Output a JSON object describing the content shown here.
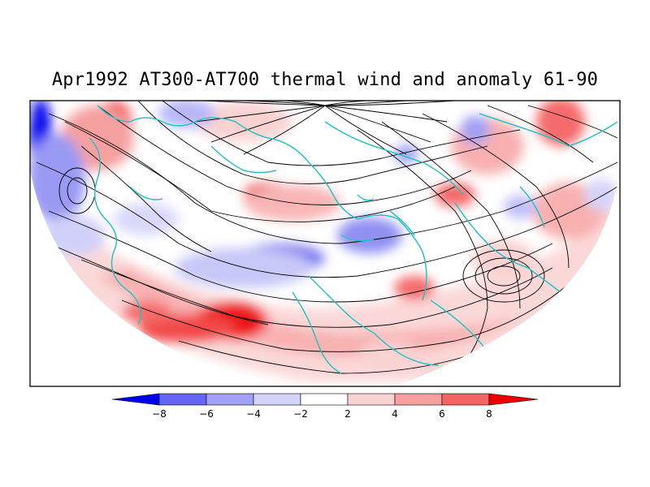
{
  "title": "Apr1992 AT300-AT700 thermal wind and anomaly 61-90",
  "colorbar": {
    "labels": [
      "−8",
      "−6",
      "−4",
      "−2",
      "2",
      "4",
      "6",
      "8"
    ],
    "colors": [
      "#0000ee",
      "#6464f5",
      "#a0a0f6",
      "#d4d4fa",
      "#ffffff",
      "#fad2d2",
      "#f8a0a0",
      "#f56464",
      "#ee0000"
    ]
  },
  "colors": {
    "coastline": "#27c3c3",
    "streamline": "#000000",
    "negative_strong": "#2a2ae6",
    "positive_strong": "#ee1111"
  }
}
